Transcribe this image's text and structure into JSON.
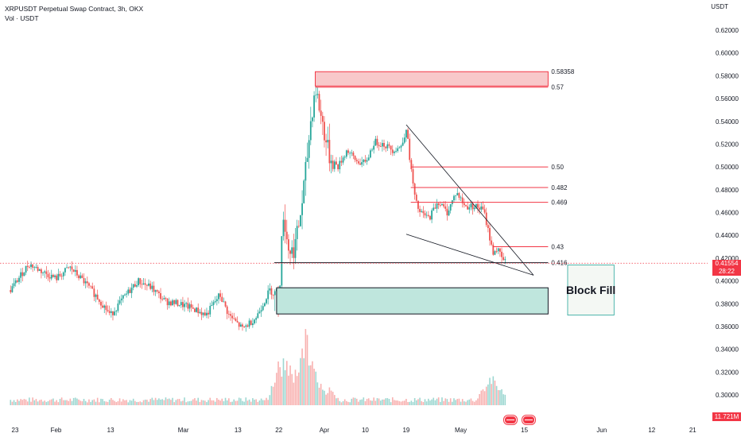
{
  "header": {
    "title": "XRPUSDT Perpetual Swap Contract, 3h, OKX",
    "subtitle": "Vol · USDT"
  },
  "currency": "USDT",
  "last_price": {
    "value": "0.41554",
    "countdown": "28:22",
    "color": "#f23645"
  },
  "volume_last": "11.721M",
  "chart_data": {
    "type": "candlestick",
    "ylim": [
      0.29,
      0.63
    ],
    "y_ticks": [
      0.3,
      0.32,
      0.34,
      0.36,
      0.38,
      0.4,
      0.42,
      0.44,
      0.46,
      0.48,
      0.5,
      0.52,
      0.54,
      0.56,
      0.58,
      0.6,
      0.62
    ],
    "y_tick_labels": [
      "0.30000",
      "0.32000",
      "0.34000",
      "0.36000",
      "0.38000",
      "0.40000",
      "0.42000",
      "0.44000",
      "0.46000",
      "0.48000",
      "0.50000",
      "0.52000",
      "0.54000",
      "0.56000",
      "0.58000",
      "0.60000",
      "0.62000"
    ],
    "x_ticks": [
      {
        "label": "23",
        "day": 0
      },
      {
        "label": "Feb",
        "day": 9
      },
      {
        "label": "13",
        "day": 21
      },
      {
        "label": "Mar",
        "day": 37
      },
      {
        "label": "13",
        "day": 49
      },
      {
        "label": "22",
        "day": 58
      },
      {
        "label": "Apr",
        "day": 68
      },
      {
        "label": "10",
        "day": 77
      },
      {
        "label": "19",
        "day": 86
      },
      {
        "label": "May",
        "day": 98
      },
      {
        "label": "15",
        "day": 112
      },
      {
        "label": "Jun",
        "day": 129
      },
      {
        "label": "12",
        "day": 140
      },
      {
        "label": "21",
        "day": 149
      }
    ],
    "up_color": "#26a69a",
    "down_color": "#ef5350",
    "price_path": [
      {
        "day": -1,
        "price": 0.392
      },
      {
        "day": 3,
        "price": 0.415
      },
      {
        "day": 6,
        "price": 0.408
      },
      {
        "day": 9,
        "price": 0.402
      },
      {
        "day": 12,
        "price": 0.412
      },
      {
        "day": 15,
        "price": 0.4
      },
      {
        "day": 18,
        "price": 0.386
      },
      {
        "day": 21,
        "price": 0.37
      },
      {
        "day": 24,
        "price": 0.386
      },
      {
        "day": 27,
        "price": 0.4
      },
      {
        "day": 30,
        "price": 0.394
      },
      {
        "day": 33,
        "price": 0.382
      },
      {
        "day": 36,
        "price": 0.38
      },
      {
        "day": 39,
        "price": 0.376
      },
      {
        "day": 42,
        "price": 0.37
      },
      {
        "day": 45,
        "price": 0.388
      },
      {
        "day": 47,
        "price": 0.37
      },
      {
        "day": 50,
        "price": 0.358
      },
      {
        "day": 53,
        "price": 0.368
      },
      {
        "day": 56,
        "price": 0.392
      },
      {
        "day": 58,
        "price": 0.385
      },
      {
        "day": 59,
        "price": 0.46
      },
      {
        "day": 60,
        "price": 0.43
      },
      {
        "day": 61,
        "price": 0.425
      },
      {
        "day": 62,
        "price": 0.44
      },
      {
        "day": 63,
        "price": 0.465
      },
      {
        "day": 64,
        "price": 0.5
      },
      {
        "day": 65,
        "price": 0.54
      },
      {
        "day": 66,
        "price": 0.57
      },
      {
        "day": 67,
        "price": 0.55
      },
      {
        "day": 68,
        "price": 0.53
      },
      {
        "day": 69,
        "price": 0.51
      },
      {
        "day": 71,
        "price": 0.5
      },
      {
        "day": 73,
        "price": 0.515
      },
      {
        "day": 75,
        "price": 0.505
      },
      {
        "day": 77,
        "price": 0.503
      },
      {
        "day": 79,
        "price": 0.522
      },
      {
        "day": 81,
        "price": 0.52
      },
      {
        "day": 83,
        "price": 0.515
      },
      {
        "day": 85,
        "price": 0.518
      },
      {
        "day": 86,
        "price": 0.535
      },
      {
        "day": 87,
        "price": 0.5
      },
      {
        "day": 88,
        "price": 0.47
      },
      {
        "day": 89,
        "price": 0.46
      },
      {
        "day": 91,
        "price": 0.455
      },
      {
        "day": 93,
        "price": 0.47
      },
      {
        "day": 95,
        "price": 0.46
      },
      {
        "day": 97,
        "price": 0.478
      },
      {
        "day": 99,
        "price": 0.465
      },
      {
        "day": 101,
        "price": 0.466
      },
      {
        "day": 103,
        "price": 0.462
      },
      {
        "day": 104,
        "price": 0.445
      },
      {
        "day": 105,
        "price": 0.425
      },
      {
        "day": 106,
        "price": 0.428
      },
      {
        "day": 107,
        "price": 0.42
      },
      {
        "day": 108,
        "price": 0.4155
      }
    ],
    "volume": {
      "ylim": [
        0,
        70000000
      ],
      "spikes": [
        {
          "day": 58,
          "value": 40000000
        },
        {
          "day": 60,
          "value": 30000000
        },
        {
          "day": 62,
          "value": 26000000
        },
        {
          "day": 64,
          "value": 65000000
        },
        {
          "day": 66,
          "value": 22000000
        },
        {
          "day": 69,
          "value": 12000000
        },
        {
          "day": 104,
          "value": 20000000
        },
        {
          "day": 106,
          "value": 16000000
        }
      ]
    },
    "horizontal_lines": [
      {
        "price": 0.57,
        "label": "0.57",
        "color": "#f23645"
      },
      {
        "price": 0.5,
        "label": "0.50",
        "color": "#f23645"
      },
      {
        "price": 0.482,
        "label": "0.482",
        "color": "#f23645"
      },
      {
        "price": 0.469,
        "label": "0.469",
        "color": "#f23645"
      },
      {
        "price": 0.43,
        "label": "0.43",
        "color": "#f23645"
      },
      {
        "price": 0.416,
        "label": "0.416",
        "color": "#131722"
      }
    ],
    "zones": [
      {
        "name": "supply",
        "top": 0.58358,
        "bottom": 0.571,
        "label": "0.58358",
        "fill": "#f8c8ca",
        "stroke": "#f23645"
      },
      {
        "name": "demand",
        "top": 0.394,
        "bottom": 0.371,
        "fill": "#bfe6dd",
        "stroke": "#131722"
      }
    ],
    "trendlines": [
      {
        "from": {
          "day": 86,
          "price": 0.537
        },
        "to": {
          "day": 114,
          "price": 0.405
        }
      },
      {
        "from": {
          "day": 86,
          "price": 0.441
        },
        "to": {
          "day": 114,
          "price": 0.405
        }
      }
    ],
    "annotation": {
      "text": "Block Fill",
      "top": 0.414,
      "bottom": 0.37
    }
  }
}
